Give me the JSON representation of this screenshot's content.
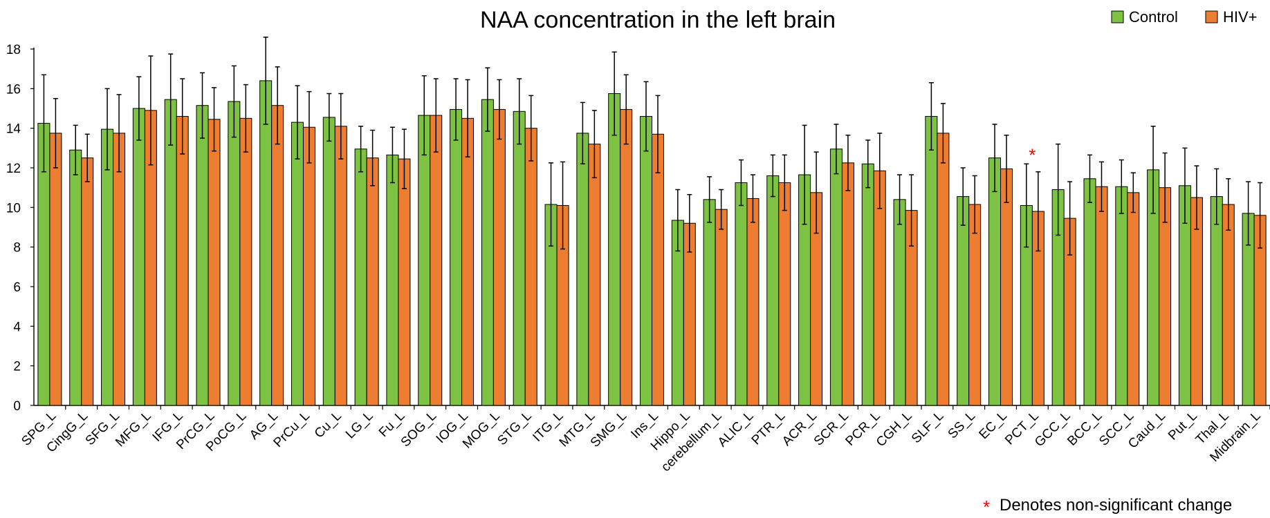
{
  "chart_data": {
    "type": "bar",
    "title": "NAA concentration in the left brain",
    "xlabel": "",
    "ylabel": "",
    "ylim": [
      0,
      18
    ],
    "yticks": [
      0,
      2,
      4,
      6,
      8,
      10,
      12,
      14,
      16,
      18
    ],
    "grid": false,
    "legend_position": "top-right",
    "error_bars": true,
    "categories": [
      "SPG_L",
      "CingG_L",
      "SFG_L",
      "MFG_L",
      "IFG_L",
      "PrCG_L",
      "PoCG_L",
      "AG_L",
      "PrCu_L",
      "Cu_L",
      "LG_L",
      "Fu_L",
      "SOG_L",
      "IOG_L",
      "MOG_L",
      "STG_L",
      "ITG_L",
      "MTG_L",
      "SMG_L",
      "Ins_L",
      "Hippo_L",
      "cerebellum_L",
      "ALIC_L",
      "PTR_L",
      "ACR_L",
      "SCR_L",
      "PCR_L",
      "CGH_L",
      "SLF_L",
      "SS_L",
      "EC_L",
      "PCT_L",
      "GCC_L",
      "BCC_L",
      "SCC_L",
      "Caud_L",
      "Put_L",
      "Thal_L",
      "Midbrain_L"
    ],
    "series": [
      {
        "name": "Control",
        "color": "#7dc242",
        "values": [
          14.25,
          12.9,
          13.95,
          15.0,
          15.45,
          15.15,
          15.35,
          16.4,
          14.3,
          14.55,
          12.95,
          12.65,
          14.65,
          14.95,
          15.45,
          14.85,
          10.15,
          13.75,
          15.75,
          14.6,
          9.35,
          10.4,
          11.25,
          11.6,
          11.65,
          12.95,
          12.2,
          10.4,
          14.6,
          10.55,
          12.5,
          10.1,
          10.9,
          11.45,
          11.05,
          11.9,
          11.1,
          10.55,
          9.7
        ],
        "errors": [
          2.45,
          1.25,
          2.05,
          1.6,
          2.3,
          1.65,
          1.8,
          2.2,
          1.85,
          1.2,
          1.15,
          1.4,
          2.0,
          1.55,
          1.6,
          1.65,
          2.1,
          1.55,
          2.1,
          1.75,
          1.55,
          1.15,
          1.15,
          1.05,
          2.5,
          1.25,
          1.2,
          1.25,
          1.7,
          1.45,
          1.7,
          2.1,
          2.3,
          1.2,
          1.35,
          2.2,
          1.9,
          1.4,
          1.6
        ]
      },
      {
        "name": "HIV+",
        "color": "#ed7d31",
        "values": [
          13.75,
          12.5,
          13.75,
          14.9,
          14.6,
          14.45,
          14.5,
          15.15,
          14.05,
          14.1,
          12.5,
          12.45,
          14.65,
          14.5,
          14.95,
          14.0,
          10.1,
          13.2,
          14.95,
          13.7,
          9.2,
          9.9,
          10.45,
          11.25,
          10.75,
          12.25,
          11.85,
          9.85,
          13.75,
          10.15,
          11.95,
          9.8,
          9.45,
          11.05,
          10.75,
          11.0,
          10.5,
          10.15,
          9.6
        ],
        "errors": [
          1.75,
          1.2,
          1.95,
          2.75,
          1.9,
          1.6,
          1.7,
          1.95,
          1.8,
          1.65,
          1.4,
          1.5,
          1.85,
          1.95,
          1.5,
          1.65,
          2.2,
          1.7,
          1.75,
          1.95,
          1.45,
          1.0,
          1.2,
          1.4,
          2.05,
          1.4,
          1.9,
          1.8,
          1.5,
          1.45,
          1.7,
          2.0,
          1.85,
          1.25,
          1.0,
          1.75,
          1.6,
          1.3,
          1.65
        ]
      }
    ],
    "annotations": [
      {
        "text": "*",
        "category": "PCT_L",
        "color": "#ff0000"
      }
    ],
    "note": {
      "symbol": "*",
      "text": "Denotes non-significant change",
      "symbol_color": "#ff0000"
    }
  }
}
